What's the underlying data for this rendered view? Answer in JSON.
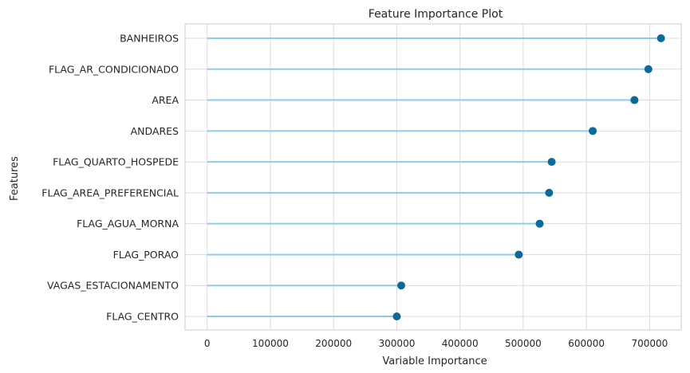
{
  "chart_data": {
    "type": "lollipop",
    "title": "Feature Importance Plot",
    "xlabel": "Variable Importance",
    "ylabel": "Features",
    "xlim": [
      -35000,
      750000
    ],
    "xticks": [
      0,
      100000,
      200000,
      300000,
      400000,
      500000,
      600000,
      700000
    ],
    "xtick_labels": [
      "0",
      "100000",
      "200000",
      "300000",
      "400000",
      "500000",
      "600000",
      "700000"
    ],
    "grid": true,
    "categories": [
      "BANHEIROS",
      "FLAG_AR_CONDICIONADO",
      "AREA",
      "ANDARES",
      "FLAG_QUARTO_HOSPEDE",
      "FLAG_AREA_PREFERENCIAL",
      "FLAG_AGUA_MORNA",
      "FLAG_PORAO",
      "VAGAS_ESTACIONAMENTO",
      "FLAG_CENTRO"
    ],
    "values": [
      718000,
      698000,
      676000,
      610000,
      545000,
      541000,
      526000,
      493000,
      307000,
      300000
    ],
    "colors": {
      "stem": "#8fcbeb",
      "marker": "#0c6a9b",
      "grid": "#dcdcdc",
      "frame": "#cccccc"
    }
  }
}
